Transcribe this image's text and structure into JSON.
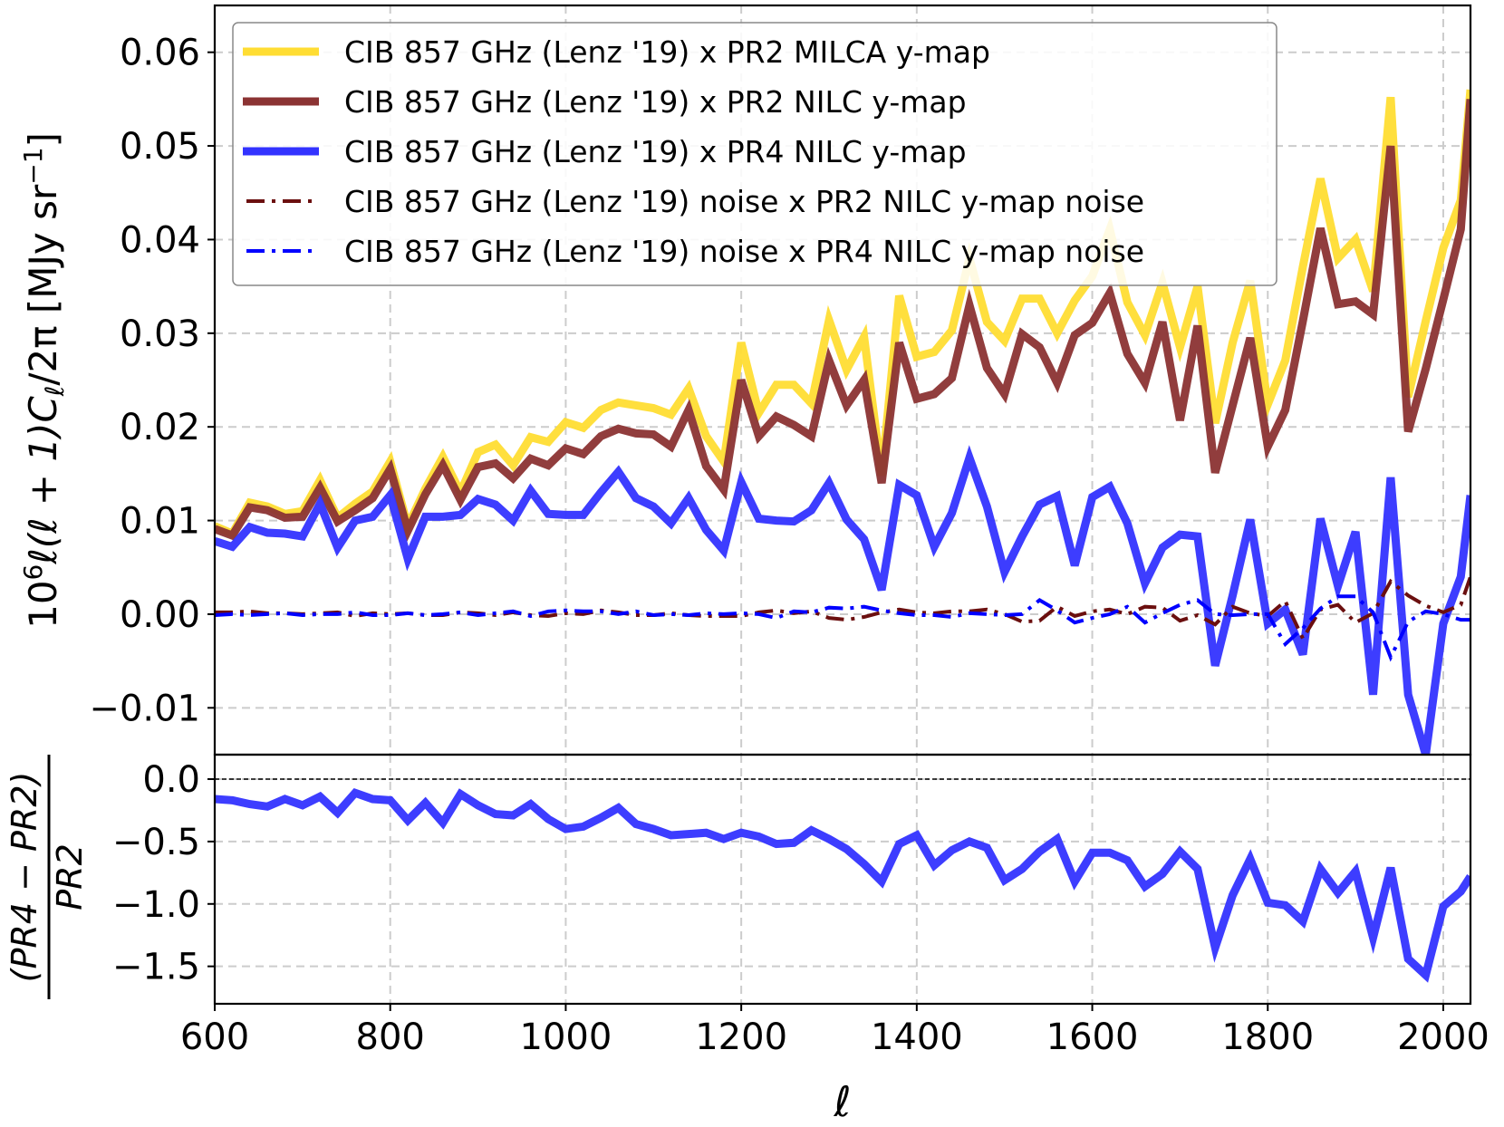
{
  "chart_data": [
    {
      "type": "line",
      "panel": "main",
      "ylabel": "10^6 ℓ(ℓ + 1)C_ℓ/2π [MJy sr^-1]",
      "ylabel_parts": {
        "pre": "10",
        "sup6": "6",
        "mid": "ℓ(ℓ + 1)C",
        "sub": "ℓ",
        "post": "/2π [MJy sr",
        "sup": "−1",
        "end": "]"
      },
      "xlim": [
        600,
        2031
      ],
      "ylim": [
        -0.015,
        0.065
      ],
      "yticks": [
        0.06,
        0.05,
        0.04,
        0.03,
        0.02,
        0.01,
        0.0,
        -0.01
      ],
      "ytick_labels": [
        "0.06",
        "0.05",
        "0.04",
        "0.03",
        "0.02",
        "0.01",
        "0.00",
        "−0.01"
      ],
      "xticks": [
        600,
        800,
        1000,
        1200,
        1400,
        1600,
        1800,
        2000
      ],
      "grid": true,
      "legend_position": "top",
      "x": [
        600,
        620,
        640,
        660,
        680,
        700,
        720,
        740,
        760,
        780,
        800,
        820,
        840,
        860,
        880,
        900,
        920,
        940,
        960,
        980,
        1000,
        1020,
        1040,
        1060,
        1080,
        1100,
        1120,
        1140,
        1160,
        1180,
        1200,
        1220,
        1240,
        1260,
        1280,
        1300,
        1320,
        1340,
        1360,
        1380,
        1400,
        1420,
        1440,
        1460,
        1480,
        1500,
        1520,
        1540,
        1560,
        1580,
        1600,
        1620,
        1640,
        1660,
        1680,
        1700,
        1720,
        1740,
        1760,
        1780,
        1800,
        1820,
        1840,
        1860,
        1880,
        1900,
        1920,
        1940,
        1960,
        1980,
        2000,
        2020,
        2031
      ],
      "series": [
        {
          "name": "CIB 857 GHz (Lenz '19) x PR2 MILCA y-map",
          "color": "#FFDD33",
          "style": "solid",
          "values": [
            0.0094,
            0.0086,
            0.0119,
            0.0115,
            0.0107,
            0.011,
            0.0143,
            0.0103,
            0.0118,
            0.0131,
            0.0163,
            0.0094,
            0.0134,
            0.0168,
            0.013,
            0.0173,
            0.0181,
            0.0159,
            0.0189,
            0.0184,
            0.0205,
            0.0199,
            0.0218,
            0.0226,
            0.0223,
            0.022,
            0.0213,
            0.0241,
            0.019,
            0.0163,
            0.029,
            0.0215,
            0.0245,
            0.0245,
            0.0225,
            0.0314,
            0.0261,
            0.0296,
            0.0148,
            0.034,
            0.0275,
            0.028,
            0.0303,
            0.038,
            0.0312,
            0.0292,
            0.0337,
            0.0337,
            0.03,
            0.0335,
            0.0361,
            0.0411,
            0.0333,
            0.0298,
            0.0354,
            0.0285,
            0.035,
            0.0204,
            0.029,
            0.0356,
            0.0224,
            0.0271,
            0.0371,
            0.0465,
            0.038,
            0.04,
            0.0345,
            0.0552,
            0.0232,
            0.0313,
            0.0391,
            0.0442,
            0.056
          ]
        },
        {
          "name": "CIB 857 GHz (Lenz '19) x PR2 NILC y-map",
          "color": "#8B3333",
          "style": "solid",
          "values": [
            0.0091,
            0.0084,
            0.0114,
            0.0111,
            0.0103,
            0.0104,
            0.0135,
            0.0099,
            0.0111,
            0.0124,
            0.0155,
            0.0089,
            0.0128,
            0.0159,
            0.0122,
            0.0157,
            0.0161,
            0.0145,
            0.0166,
            0.0159,
            0.0177,
            0.0171,
            0.019,
            0.0198,
            0.0193,
            0.0192,
            0.0179,
            0.0218,
            0.0158,
            0.0133,
            0.025,
            0.019,
            0.0211,
            0.0202,
            0.019,
            0.0271,
            0.0223,
            0.025,
            0.014,
            0.029,
            0.023,
            0.0235,
            0.0252,
            0.033,
            0.0263,
            0.0235,
            0.0299,
            0.0285,
            0.0247,
            0.0298,
            0.0311,
            0.0343,
            0.0278,
            0.0247,
            0.0312,
            0.0207,
            0.0308,
            0.0151,
            0.0223,
            0.0295,
            0.0179,
            0.0218,
            0.0313,
            0.0412,
            0.0331,
            0.0334,
            0.032,
            0.05,
            0.0195,
            0.0262,
            0.0336,
            0.0411,
            0.055
          ]
        },
        {
          "name": "CIB 857 GHz (Lenz '19) x PR4 NILC y-map",
          "color": "#3333FF",
          "style": "solid",
          "values": [
            0.0078,
            0.0072,
            0.0093,
            0.0087,
            0.0086,
            0.0083,
            0.0118,
            0.0071,
            0.01,
            0.0104,
            0.0127,
            0.0059,
            0.0104,
            0.0104,
            0.0106,
            0.0123,
            0.0117,
            0.01,
            0.0132,
            0.0107,
            0.0106,
            0.0106,
            0.013,
            0.0152,
            0.0124,
            0.0115,
            0.0097,
            0.0124,
            0.009,
            0.0068,
            0.0141,
            0.0102,
            0.01,
            0.0099,
            0.0111,
            0.014,
            0.0101,
            0.008,
            0.0026,
            0.0138,
            0.0127,
            0.0072,
            0.0108,
            0.0167,
            0.0115,
            0.0045,
            0.0083,
            0.0117,
            0.0126,
            0.0052,
            0.0125,
            0.0136,
            0.0097,
            0.0033,
            0.0071,
            0.0085,
            0.0083,
            -0.0055,
            0.002,
            0.0101,
            -0.001,
            0.0005,
            -0.0043,
            0.0102,
            0.003,
            0.0088,
            -0.0086,
            0.0146,
            -0.0086,
            -0.015,
            -0.001,
            0.004,
            0.0127
          ]
        },
        {
          "name": "CIB 857 GHz (Lenz '19) noise x PR2 NILC y-map noise",
          "color": "#6B0F0F",
          "style": "dashdot",
          "values": [
            0.0002,
            0.0002,
            0.0003,
            0.0001,
            0.0001,
            0.0,
            0.0001,
            0.0002,
            -0.0002,
            0.0001,
            0.0,
            0.0001,
            -0.0001,
            -0.0001,
            0.0002,
            0.0001,
            -0.0001,
            0.0002,
            -0.0001,
            -0.0002,
            0.0001,
            0.0,
            0.0004,
            0.0002,
            -0.0001,
            -0.0001,
            0.0001,
            -0.0001,
            -0.0002,
            -0.0002,
            -0.0002,
            0.0002,
            0.0004,
            0.0001,
            0.0003,
            -0.0004,
            -0.0006,
            -0.0003,
            0.0002,
            0.0005,
            0.0002,
            0.0001,
            0.0003,
            0.0003,
            0.0005,
            0.0,
            -0.0008,
            -0.0007,
            0.0008,
            -0.0002,
            0.0003,
            0.0005,
            0.0,
            0.0008,
            0.0007,
            -0.0007,
            -0.0001,
            -0.0011,
            0.0008,
            0.0001,
            -0.0002,
            0.0014,
            -0.0026,
            0.0005,
            0.001,
            -0.0009,
            0.0001,
            0.0035,
            0.002,
            0.0009,
            0.0002,
            0.001,
            0.004
          ]
        },
        {
          "name": "CIB 857 GHz (Lenz '19) noise x PR4 NILC y-map noise",
          "color": "#0000FF",
          "style": "dashdot",
          "values": [
            -0.0001,
            0.0,
            -0.0001,
            0.0,
            0.0001,
            -0.0001,
            0.0,
            0.0,
            0.0002,
            -0.0001,
            -0.0001,
            0.0001,
            -0.0001,
            0.0,
            0.0002,
            -0.0001,
            0.0001,
            0.0003,
            -0.0002,
            0.0003,
            0.0004,
            0.0003,
            0.0003,
            0.0,
            0.0003,
            -0.0001,
            0.0,
            -0.0001,
            0.0001,
            0.0,
            0.0001,
            0.0,
            -0.0004,
            0.0003,
            0.0002,
            0.0007,
            0.0006,
            0.0008,
            0.0004,
            0.0001,
            -0.0001,
            -0.0001,
            -0.0003,
            0.0001,
            0.0,
            -0.0001,
            0.0,
            0.0015,
            0.0004,
            -0.0009,
            -0.0004,
            0.0,
            0.0008,
            -0.0009,
            0.0001,
            0.001,
            0.0015,
            0.0,
            -0.0001,
            0.0,
            0.0,
            -0.0032,
            -0.0015,
            0.0006,
            0.0019,
            0.0019,
            0.0002,
            -0.0046,
            -0.0008,
            0.0003,
            0.0,
            -0.0006,
            -0.0006
          ]
        }
      ]
    },
    {
      "type": "line",
      "panel": "ratio",
      "ylabel": "(PR4 − PR2) / PR2",
      "ylabel_parts": {
        "numerator": "(PR4 − PR2)",
        "denominator": "PR2"
      },
      "xlabel": "ℓ",
      "xlim": [
        600,
        2031
      ],
      "ylim": [
        -1.8,
        0.196
      ],
      "yticks": [
        0.0,
        -0.5,
        -1.0,
        -1.5
      ],
      "ytick_labels": [
        "0.0",
        "−0.5",
        "−1.0",
        "−1.5"
      ],
      "xticks": [
        600,
        800,
        1000,
        1200,
        1400,
        1600,
        1800,
        2000
      ],
      "xtick_labels": [
        "600",
        "800",
        "1000",
        "1200",
        "1400",
        "1600",
        "1800",
        "2000"
      ],
      "grid": true,
      "reference_line": 0.0,
      "x": [
        600,
        620,
        640,
        660,
        680,
        700,
        720,
        740,
        760,
        780,
        800,
        820,
        840,
        860,
        880,
        900,
        920,
        940,
        960,
        980,
        1000,
        1020,
        1040,
        1060,
        1080,
        1100,
        1120,
        1140,
        1160,
        1180,
        1200,
        1220,
        1240,
        1260,
        1280,
        1300,
        1320,
        1340,
        1360,
        1380,
        1400,
        1420,
        1440,
        1460,
        1480,
        1500,
        1520,
        1540,
        1560,
        1580,
        1600,
        1620,
        1640,
        1660,
        1680,
        1700,
        1720,
        1740,
        1760,
        1780,
        1800,
        1820,
        1840,
        1860,
        1880,
        1900,
        1920,
        1940,
        1960,
        1980,
        2000,
        2020,
        2031
      ],
      "series": [
        {
          "name": "(PR4 − PR2)/PR2",
          "color": "#3333FF",
          "style": "solid",
          "values": [
            -0.16,
            -0.17,
            -0.2,
            -0.22,
            -0.16,
            -0.21,
            -0.14,
            -0.27,
            -0.11,
            -0.16,
            -0.17,
            -0.33,
            -0.19,
            -0.35,
            -0.12,
            -0.21,
            -0.28,
            -0.29,
            -0.2,
            -0.32,
            -0.4,
            -0.38,
            -0.31,
            -0.23,
            -0.36,
            -0.4,
            -0.45,
            -0.44,
            -0.43,
            -0.48,
            -0.43,
            -0.46,
            -0.52,
            -0.51,
            -0.41,
            -0.48,
            -0.56,
            -0.68,
            -0.82,
            -0.52,
            -0.45,
            -0.69,
            -0.57,
            -0.5,
            -0.55,
            -0.81,
            -0.72,
            -0.58,
            -0.48,
            -0.82,
            -0.59,
            -0.59,
            -0.65,
            -0.86,
            -0.76,
            -0.58,
            -0.72,
            -1.35,
            -0.93,
            -0.64,
            -0.99,
            -1.01,
            -1.14,
            -0.72,
            -0.91,
            -0.74,
            -1.27,
            -0.71,
            -1.44,
            -1.57,
            -1.02,
            -0.9,
            -0.78
          ]
        }
      ]
    }
  ]
}
